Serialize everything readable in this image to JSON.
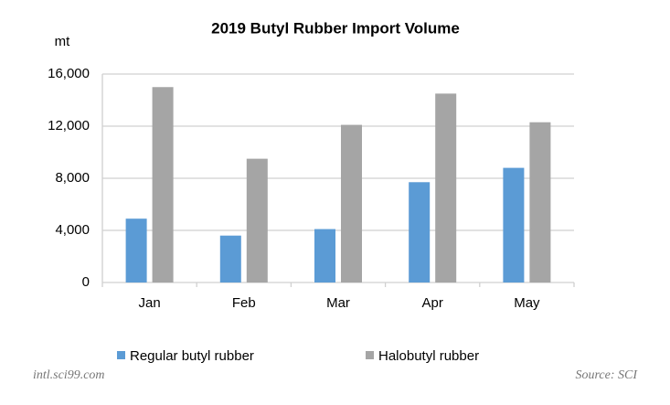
{
  "chart_data": {
    "type": "bar",
    "title": "2019 Butyl Rubber Import Volume",
    "y_label": "mt",
    "categories": [
      "Jan",
      "Feb",
      "Mar",
      "Apr",
      "May"
    ],
    "series": [
      {
        "name": "Regular butyl rubber",
        "color": "#5b9bd5",
        "values": [
          4900,
          3600,
          4100,
          7700,
          8800
        ]
      },
      {
        "name": "Halobutyl rubber",
        "color": "#a5a5a5",
        "values": [
          15000,
          9500,
          12100,
          14500,
          12300
        ]
      }
    ],
    "ylim": [
      0,
      16000
    ],
    "yticks": [
      0,
      {
        "value": 4000,
        "label": "4,000"
      },
      {
        "value": 8000,
        "label": "8,000"
      },
      {
        "value": 12000,
        "label": "12,000"
      },
      {
        "value": 16000,
        "label": "16,000"
      }
    ],
    "grid": true,
    "legend": "bottom",
    "website": "intl.sci99.com",
    "source": "Source: SCI"
  }
}
